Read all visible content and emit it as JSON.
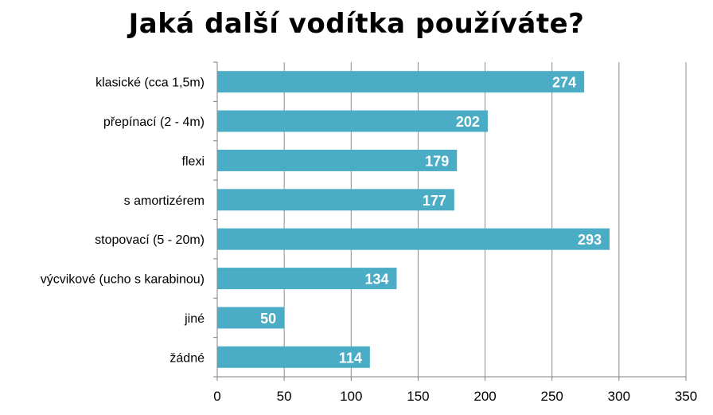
{
  "chart_data": {
    "type": "bar",
    "orientation": "horizontal",
    "title": "Jaká další vodítka používáte?",
    "categories": [
      "klasické (cca 1,5m)",
      "přepínací (2 - 4m)",
      "flexi",
      "s amortizérem",
      "stopovací (5 - 20m)",
      "výcvikové (ucho s karabinou)",
      "jiné",
      "žádné"
    ],
    "values": [
      274,
      202,
      179,
      177,
      293,
      134,
      50,
      114
    ],
    "xlim": [
      0,
      350
    ],
    "xticks": [
      0,
      50,
      100,
      150,
      200,
      250,
      300,
      350
    ],
    "grid": true,
    "bar_color": "#4BACC6",
    "data_labels": true
  }
}
